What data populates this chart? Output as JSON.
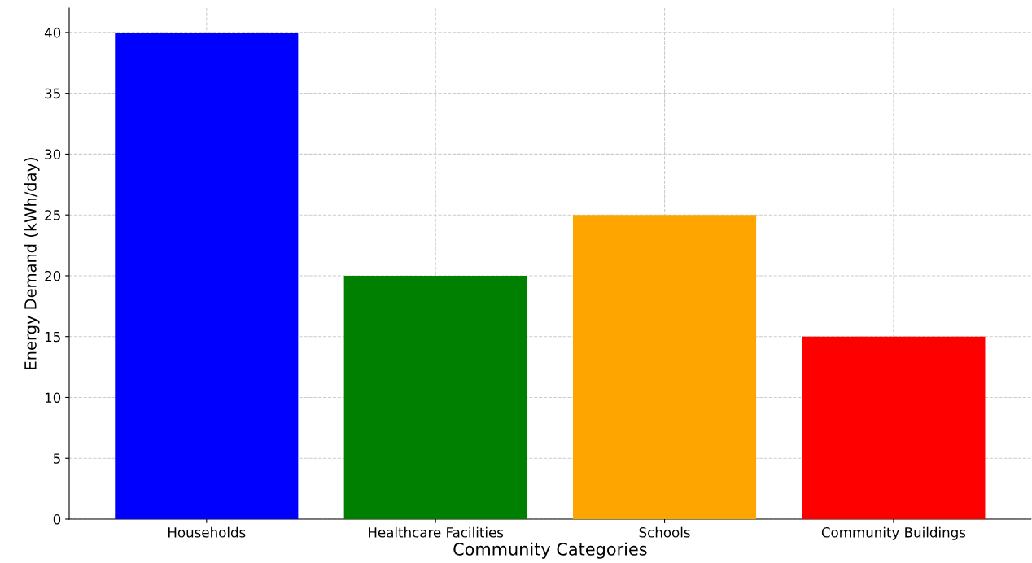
{
  "chart_data": {
    "type": "bar",
    "xlabel": "Community Categories",
    "ylabel": "Energy Demand (kWh/day)",
    "categories": [
      "Households",
      "Healthcare Facilities",
      "Schools",
      "Community Buildings"
    ],
    "values": [
      40,
      20,
      25,
      15
    ],
    "colors": [
      "#0000ff",
      "#008000",
      "#ffa500",
      "#ff0000"
    ],
    "ylim": [
      0,
      42
    ],
    "yticks": [
      0,
      5,
      10,
      15,
      20,
      25,
      30,
      35,
      40
    ],
    "grid": true,
    "line_style": "dashed"
  }
}
